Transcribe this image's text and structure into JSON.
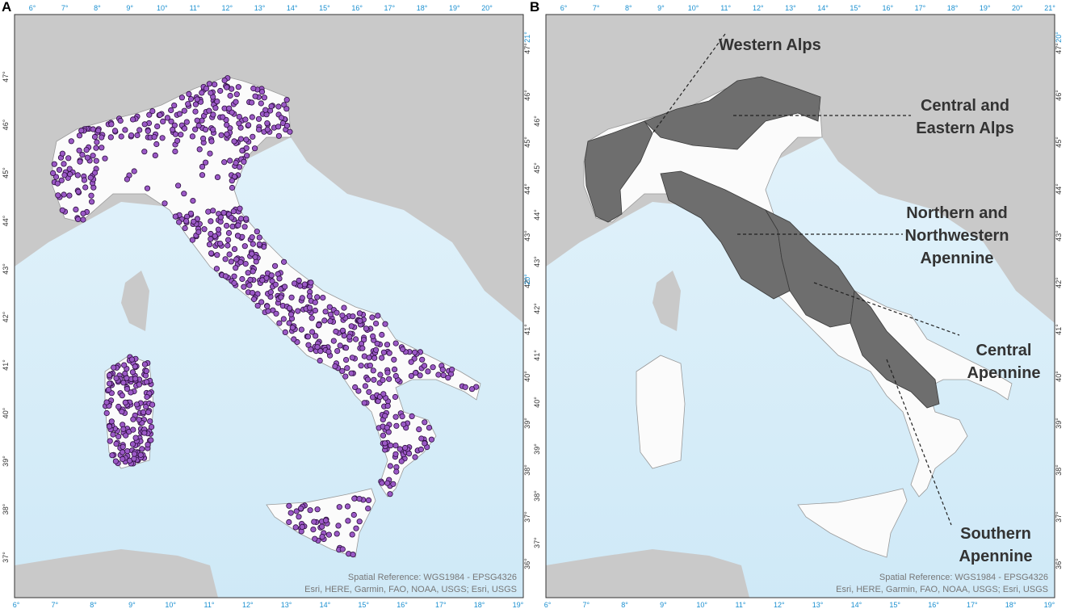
{
  "panels": [
    {
      "label": "A",
      "lon_top": [
        "6°",
        "7°",
        "8°",
        "9°",
        "10°",
        "11°",
        "12°",
        "13°",
        "14°",
        "15°",
        "16°",
        "17°",
        "18°",
        "19°",
        "20°"
      ],
      "lon_bottom": [
        "6°",
        "7°",
        "8°",
        "9°",
        "10°",
        "11°",
        "12°",
        "13°",
        "14°",
        "15°",
        "16°",
        "17°",
        "18°",
        "19°"
      ],
      "lat_left": [
        "47°",
        "46°",
        "45°",
        "44°",
        "43°",
        "42°",
        "41°",
        "40°",
        "39°",
        "38°",
        "37°"
      ],
      "lat_right": [
        "47°",
        "46°",
        "45°",
        "44°",
        "43°",
        "42°",
        "41°",
        "40°",
        "39°",
        "38°",
        "37°",
        "36°"
      ],
      "corner": [
        "21°",
        "20°"
      ],
      "credits": [
        "Spatial Reference: WGS1984 - EPSG4326",
        "Esri, HERE, Garmin, FAO, NOAA, USGS; Esri, USGS"
      ]
    },
    {
      "label": "B",
      "lon_top": [
        "6°",
        "7°",
        "8°",
        "9°",
        "10°",
        "11°",
        "12°",
        "13°",
        "14°",
        "15°",
        "16°",
        "17°",
        "18°",
        "19°",
        "20°",
        "21°"
      ],
      "lon_bottom": [
        "6°",
        "7°",
        "8°",
        "9°",
        "10°",
        "11°",
        "12°",
        "13°",
        "14°",
        "15°",
        "16°",
        "17°",
        "18°",
        "19°"
      ],
      "lat_left": [
        "46°",
        "45°",
        "44°",
        "43°",
        "42°",
        "41°",
        "40°",
        "39°",
        "38°",
        "37°"
      ],
      "lat_right": [
        "47°",
        "46°",
        "45°",
        "44°",
        "43°",
        "42°",
        "41°",
        "40°",
        "39°",
        "38°",
        "37°",
        "36°"
      ],
      "corner": [
        "20°"
      ],
      "credits": [
        "Spatial Reference: WGS1984 - EPSG4326",
        "Esri, HERE, Garmin, FAO, NOAA, USGS; Esri, USGS"
      ],
      "regions": [
        "Western Alps",
        "Central and Eastern Alps",
        "Northern and Northwestern Apennine",
        "Central Apennine",
        "Southern Apennine"
      ]
    }
  ]
}
